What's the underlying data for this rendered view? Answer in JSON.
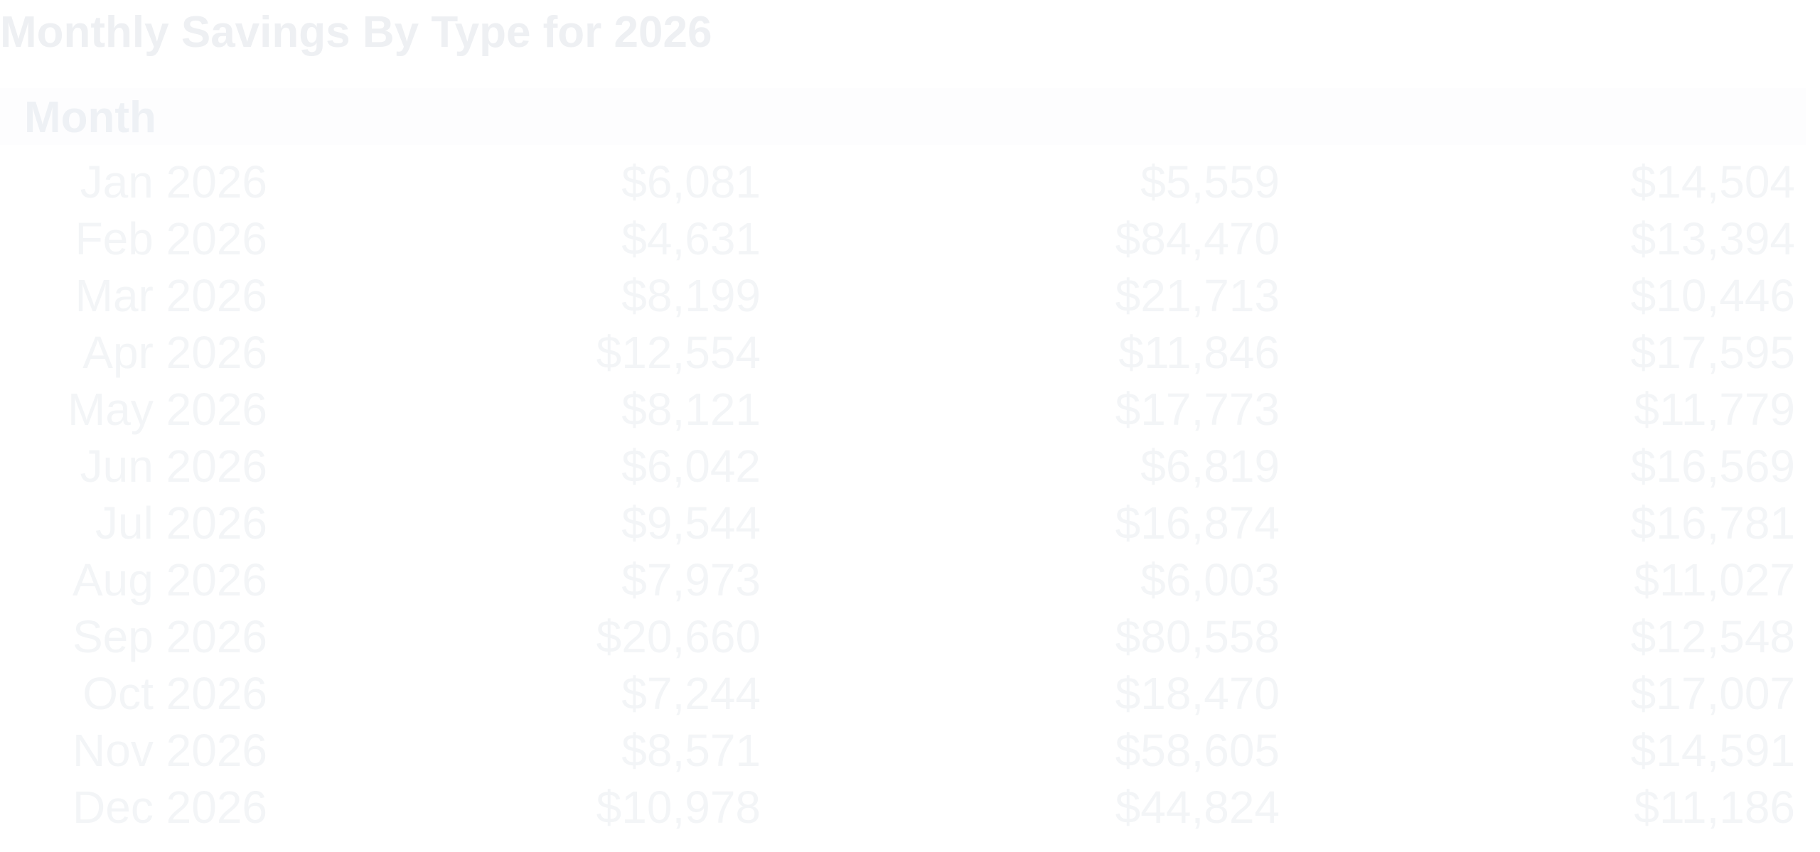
{
  "title": "Monthly Savings By Type for 2026",
  "table": {
    "header": [
      "Month"
    ],
    "rows": [
      [
        "Jan 2026",
        "$6,081",
        "$5,559",
        "$14,504"
      ],
      [
        "Feb 2026",
        "$4,631",
        "$84,470",
        "$13,394"
      ],
      [
        "Mar 2026",
        "$8,199",
        "$21,713",
        "$10,446"
      ],
      [
        "Apr 2026",
        "$12,554",
        "$11,846",
        "$17,595"
      ],
      [
        "May 2026",
        "$8,121",
        "$17,773",
        "$11,779"
      ],
      [
        "Jun 2026",
        "$6,042",
        "$6,819",
        "$16,569"
      ],
      [
        "Jul 2026",
        "$9,544",
        "$16,874",
        "$16,781"
      ],
      [
        "Aug 2026",
        "$7,973",
        "$6,003",
        "$11,027"
      ],
      [
        "Sep 2026",
        "$20,660",
        "$80,558",
        "$12,548"
      ],
      [
        "Oct 2026",
        "$7,244",
        "$18,470",
        "$17,007"
      ],
      [
        "Nov 2026",
        "$8,571",
        "$58,605",
        "$14,591"
      ],
      [
        "Dec 2026",
        "$10,978",
        "$44,824",
        "$11,186"
      ]
    ]
  }
}
